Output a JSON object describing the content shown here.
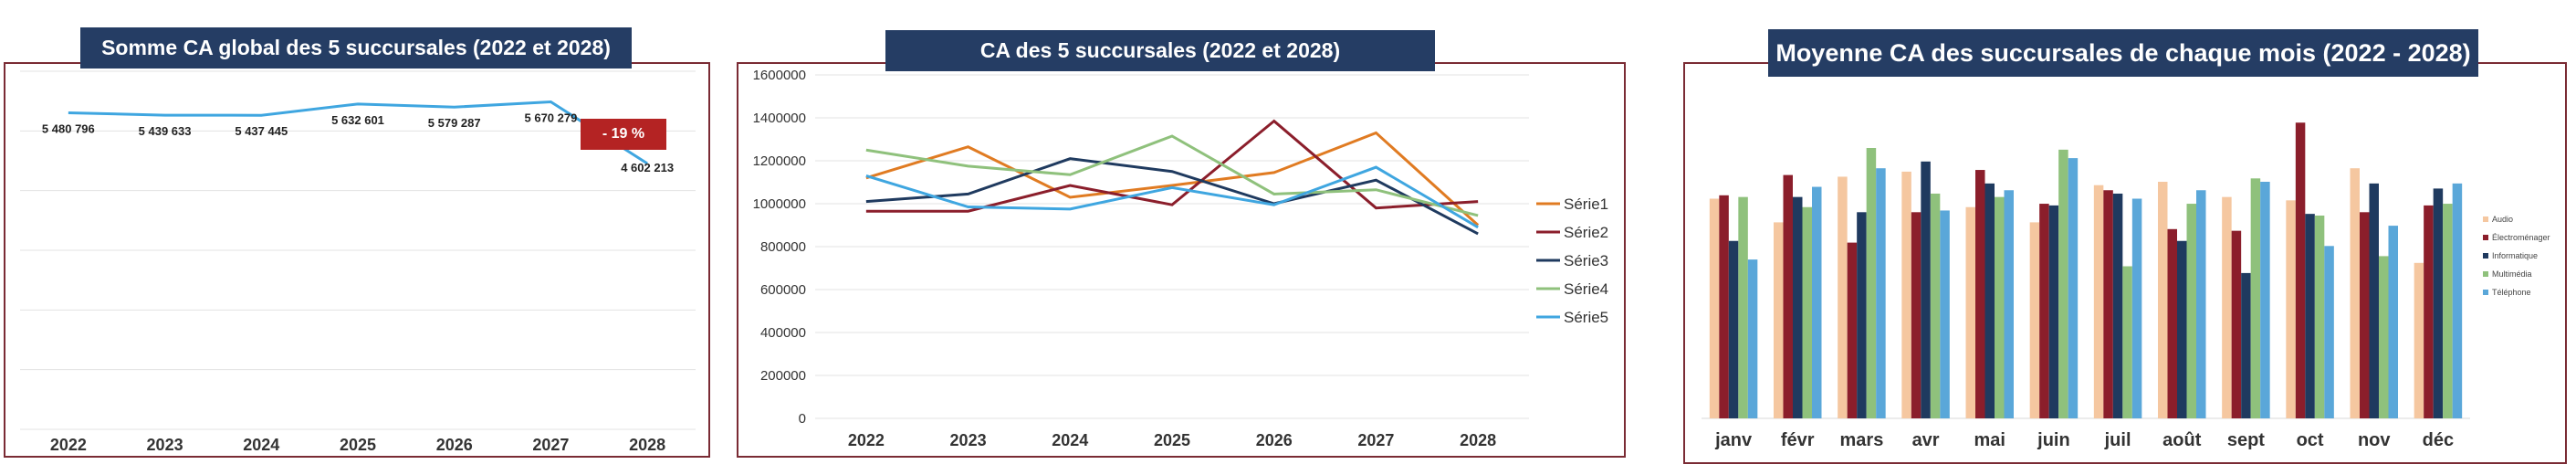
{
  "charts": {
    "left": {
      "title": "Somme CA global des 5 succursales (2022 et 2028)",
      "badge": "- 19 %"
    },
    "middle": {
      "title": "CA des 5 succursales (2022 et 2028)"
    },
    "right": {
      "title": "Moyenne CA des succursales de chaque mois (2022 - 2028)"
    }
  },
  "colors": {
    "title_bg": "#253d64",
    "frame": "#7a2b34",
    "badge": "#b42323",
    "line_total": "#3fa6e0"
  },
  "chart_data": [
    {
      "type": "line",
      "title": "Somme CA global des 5 succursales (2022 et 2028)",
      "categories": [
        "2022",
        "2023",
        "2024",
        "2025",
        "2026",
        "2027",
        "2028"
      ],
      "values": [
        5480796,
        5439633,
        5437445,
        5632601,
        5579287,
        5670279,
        4602213
      ],
      "labels": [
        "5 480 796",
        "5 439 633",
        "5 437 445",
        "5 632 601",
        "5 579 287",
        "5 670 279",
        "4 602 213"
      ],
      "annotation": "- 19 %",
      "ylim": [
        0,
        6200000
      ],
      "grid": true
    },
    {
      "type": "line",
      "title": "CA des 5 succursales (2022 et 2028)",
      "categories": [
        "2022",
        "2023",
        "2024",
        "2025",
        "2026",
        "2027",
        "2028"
      ],
      "yticks": [
        "0",
        "200000",
        "400000",
        "600000",
        "800000",
        "1000000",
        "1200000",
        "1400000",
        "1600000"
      ],
      "ylim": [
        0,
        1600000
      ],
      "legend": "right",
      "grid": true,
      "series": [
        {
          "name": "Série1",
          "color": "#e07b22",
          "values": [
            1120000,
            1265000,
            1030000,
            1085000,
            1145000,
            1330000,
            900000
          ]
        },
        {
          "name": "Série2",
          "color": "#8b1e2b",
          "values": [
            965000,
            965000,
            1085000,
            995000,
            1385000,
            980000,
            1010000
          ]
        },
        {
          "name": "Série3",
          "color": "#1f3a5f",
          "values": [
            1010000,
            1045000,
            1210000,
            1150000,
            1000000,
            1110000,
            860000
          ]
        },
        {
          "name": "Série4",
          "color": "#8fc17c",
          "values": [
            1250000,
            1175000,
            1135000,
            1315000,
            1045000,
            1065000,
            945000
          ]
        },
        {
          "name": "Série5",
          "color": "#3fa6e0",
          "values": [
            1130000,
            985000,
            975000,
            1075000,
            995000,
            1170000,
            890000
          ]
        }
      ]
    },
    {
      "type": "bar",
      "title": "Moyenne CA des succursales de chaque mois (2022 - 2028)",
      "categories": [
        "janv",
        "févr",
        "mars",
        "avr",
        "mai",
        "juin",
        "juil",
        "août",
        "sept",
        "oct",
        "nov",
        "déc"
      ],
      "ylim": [
        0,
        1000
      ],
      "legend": "right",
      "series": [
        {
          "name": "Audio",
          "color": "#f5c7a0",
          "values": [
            650,
            580,
            715,
            730,
            625,
            580,
            690,
            700,
            655,
            645,
            740,
            460
          ]
        },
        {
          "name": "Électroménager",
          "color": "#8b1e2b",
          "values": [
            660,
            720,
            520,
            610,
            735,
            635,
            675,
            560,
            555,
            875,
            610,
            630
          ]
        },
        {
          "name": "Informatique",
          "color": "#1f3a5f",
          "values": [
            525,
            655,
            610,
            760,
            695,
            630,
            665,
            525,
            430,
            605,
            695,
            680
          ]
        },
        {
          "name": "Multimédia",
          "color": "#8fc17c",
          "values": [
            655,
            625,
            800,
            665,
            655,
            795,
            450,
            635,
            710,
            600,
            480,
            635
          ]
        },
        {
          "name": "Téléphone",
          "color": "#5aa7d9",
          "values": [
            470,
            685,
            740,
            615,
            675,
            770,
            650,
            675,
            700,
            510,
            570,
            695
          ]
        }
      ]
    }
  ]
}
